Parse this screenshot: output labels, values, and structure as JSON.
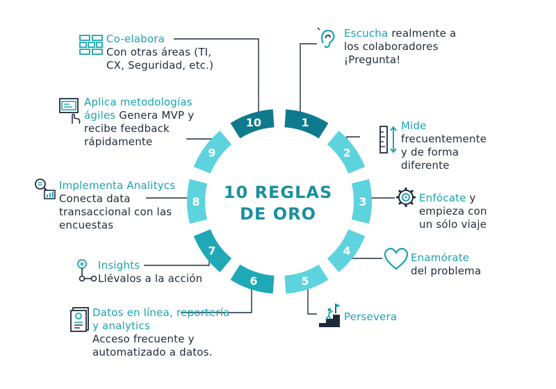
{
  "title": {
    "line1": "10 REGLAS",
    "line2": "DE ORO"
  },
  "colors": {
    "dark": "#0f7a8d",
    "mid": "#1fa8b5",
    "light": "#5dd3dd",
    "text": "#1e2a38",
    "accent": "#1aa3b0"
  },
  "rules": [
    {
      "num": "1",
      "head": "Escucha",
      "body": " realmente a los colaboradores ¡Pregunta!",
      "icon": "ear-icon"
    },
    {
      "num": "2",
      "head": "Mide",
      "body": "frecuentemente y de forma diferente",
      "icon": "ruler-icon"
    },
    {
      "num": "3",
      "head": "Enfócate",
      "body": " y empieza con un sólo viaje",
      "icon": "gear-target-icon"
    },
    {
      "num": "4",
      "head": "Enamórate",
      "body": "del problema",
      "icon": "heart-icon"
    },
    {
      "num": "5",
      "head": "Persevera",
      "body": "",
      "icon": "climber-flag-icon"
    },
    {
      "num": "6",
      "head": "Datos en línea, reportería y analytics",
      "body": "Acceso frecuente y automatizado a datos.",
      "icon": "report-icon"
    },
    {
      "num": "7",
      "head": "Insights",
      "body": "Llévalos a la acción",
      "icon": "network-icon"
    },
    {
      "num": "8",
      "head": "Implementa Analitycs",
      "body": "Conecta data transaccional con las encuestas",
      "icon": "analytics-icon"
    },
    {
      "num": "9",
      "head": "Aplica metodologías ágiles",
      "body": " Genera MVP y recibe feedback rápidamente",
      "icon": "agile-screen-icon"
    },
    {
      "num": "10",
      "head": "Co-elabora",
      "body": "Con otras áreas (TI, CX, Seguridad, etc.)",
      "icon": "blocks-icon"
    }
  ]
}
